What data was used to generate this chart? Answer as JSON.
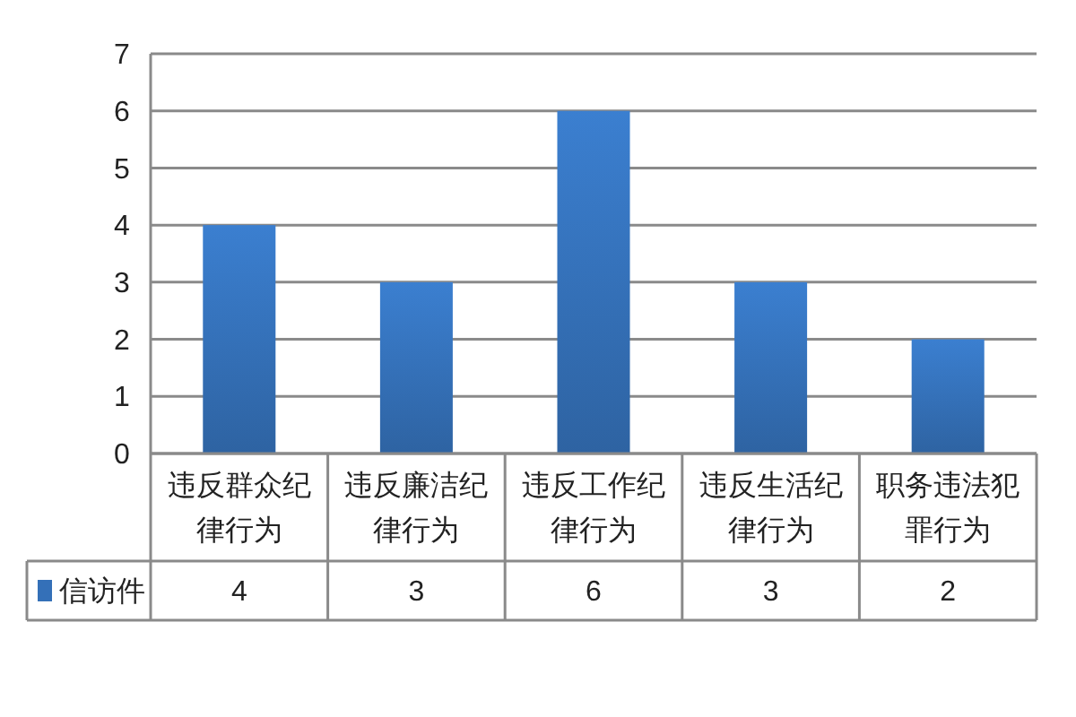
{
  "chart_data": {
    "type": "bar",
    "categories": [
      "违反群众纪律行为",
      "违反廉洁纪律行为",
      "违反工作纪律行为",
      "违反生活纪律行为",
      "职务违法犯罪行为"
    ],
    "series": [
      {
        "name": "信访件",
        "color": "#3470b8",
        "values": [
          4,
          3,
          6,
          3,
          2
        ]
      }
    ],
    "ylim": [
      0,
      7
    ],
    "yticks": [
      0,
      1,
      2,
      3,
      4,
      5,
      6,
      7
    ],
    "grid": "y",
    "legend": "bottom left",
    "data_labels": true
  }
}
